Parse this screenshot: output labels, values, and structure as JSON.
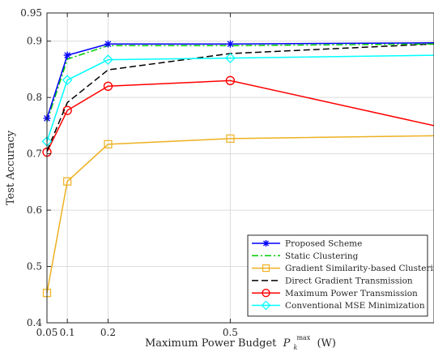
{
  "chart_data": {
    "type": "line",
    "xlabel": "Maximum Power Budget",
    "xlabel_symbol": "P",
    "xlabel_sub": "k",
    "xlabel_sup": "max",
    "xlabel_unit": "(W)",
    "ylabel": "Test Accuracy",
    "xlim": [
      0.05,
      1.0
    ],
    "ylim": [
      0.4,
      0.95
    ],
    "x_ticks": [
      0.05,
      0.1,
      0.2,
      0.5
    ],
    "x_tick_labels": [
      "0.05",
      "0.1",
      "0.2",
      "0.5"
    ],
    "y_ticks": [
      0.4,
      0.5,
      0.6,
      0.7,
      0.8,
      0.9,
      0.95
    ],
    "y_tick_labels": [
      "0.4",
      "0.5",
      "0.6",
      "0.7",
      "0.8",
      "0.9",
      "0.95"
    ],
    "grid": true,
    "legend_position": "bottom-right",
    "x": [
      0.05,
      0.1,
      0.2,
      0.5,
      1.0
    ],
    "series": [
      {
        "name": "Proposed Scheme",
        "values": [
          0.763,
          0.875,
          0.895,
          0.895,
          0.897
        ],
        "color": "#0000ff",
        "dash": "",
        "marker": "star"
      },
      {
        "name": "Static Clustering",
        "values": [
          0.757,
          0.868,
          0.892,
          0.892,
          0.895
        ],
        "color": "#00cc00",
        "dash": "8,3,2,3",
        "marker": "none"
      },
      {
        "name": "Gradient Similarity-based Clustering",
        "values": [
          0.453,
          0.651,
          0.717,
          0.727,
          0.732
        ],
        "color": "#edb120",
        "dash": "",
        "marker": "square"
      },
      {
        "name": "Direct Gradient Transmission",
        "values": [
          0.705,
          0.791,
          0.849,
          0.878,
          0.895
        ],
        "color": "#000000",
        "dash": "8,4",
        "marker": "none"
      },
      {
        "name": "Maximum Power Transmission",
        "values": [
          0.703,
          0.777,
          0.82,
          0.83,
          0.75
        ],
        "color": "#ff0000",
        "dash": "",
        "marker": "circle"
      },
      {
        "name": "Conventional MSE Minimization",
        "values": [
          0.722,
          0.831,
          0.867,
          0.87,
          0.875
        ],
        "color": "#00ffff",
        "dash": "",
        "marker": "diamond"
      }
    ]
  }
}
